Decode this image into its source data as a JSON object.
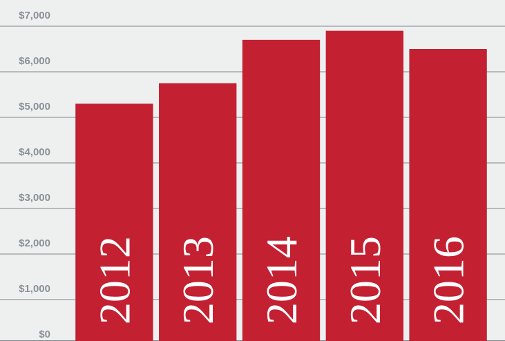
{
  "chart_data": {
    "type": "bar",
    "categories": [
      "2012",
      "2013",
      "2014",
      "2015",
      "2016"
    ],
    "values": [
      5300,
      5750,
      6700,
      6900,
      6500
    ],
    "color": "#c32032",
    "ylim": [
      0,
      7000
    ],
    "yticks": [
      {
        "value": 0,
        "label": "$0"
      },
      {
        "value": 1000,
        "label": "$1,000"
      },
      {
        "value": 2000,
        "label": "$2,000"
      },
      {
        "value": 3000,
        "label": "$3,000"
      },
      {
        "value": 4000,
        "label": "$4,000"
      },
      {
        "value": 5000,
        "label": "$5,000"
      },
      {
        "value": 6000,
        "label": "$6,000"
      },
      {
        "value": 7000,
        "label": "$7,000"
      }
    ],
    "grid": true
  }
}
